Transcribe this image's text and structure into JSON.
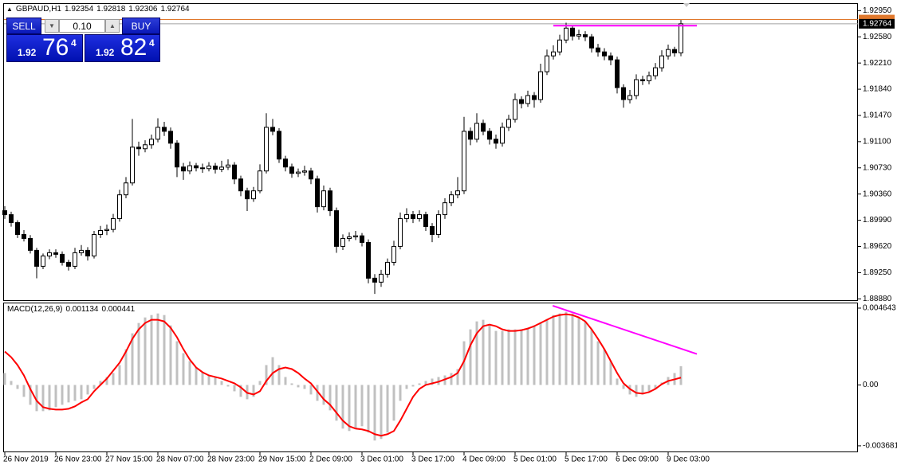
{
  "chart_data": [
    {
      "type": "candlestick",
      "title": "GBPAUD,H1",
      "categories": [
        "26 Nov 2019",
        null,
        null,
        null,
        null,
        null,
        null,
        null,
        "26 Nov 23:00",
        null,
        null,
        null,
        null,
        null,
        null,
        null,
        "27 Nov 15:00",
        null,
        null,
        null,
        null,
        null,
        null,
        null,
        "28 Nov 07:00",
        null,
        null,
        null,
        null,
        null,
        null,
        null,
        "28 Nov 23:00",
        null,
        null,
        null,
        null,
        null,
        null,
        null,
        "29 Nov 15:00",
        null,
        null,
        null,
        null,
        null,
        null,
        null,
        "2 Dec 09:00",
        null,
        null,
        null,
        null,
        null,
        null,
        null,
        "3 Dec 01:00",
        null,
        null,
        null,
        null,
        null,
        null,
        null,
        "3 Dec 17:00",
        null,
        null,
        null,
        null,
        null,
        null,
        null,
        "4 Dec 09:00",
        null,
        null,
        null,
        null,
        null,
        null,
        null,
        "5 Dec 01:00",
        null,
        null,
        null,
        null,
        null,
        null,
        null,
        "5 Dec 17:00",
        null,
        null,
        null,
        null,
        null,
        null,
        null,
        "6 Dec 09:00",
        null,
        null,
        null,
        null,
        null,
        null,
        null,
        "9 Dec 03:00",
        null,
        null
      ],
      "ohlc": [
        [
          1.90125,
          1.9019,
          1.9001,
          1.90069
        ],
        [
          1.90069,
          1.9011,
          1.899,
          1.89957
        ],
        [
          1.89957,
          1.8999,
          1.8974,
          1.89789
        ],
        [
          1.89789,
          1.8985,
          1.8969,
          1.89733
        ],
        [
          1.89733,
          1.8978,
          1.8952,
          1.89565
        ],
        [
          1.89565,
          1.896,
          1.8917,
          1.8934
        ],
        [
          1.8934,
          1.8952,
          1.893,
          1.89486
        ],
        [
          1.89486,
          1.8958,
          1.8944,
          1.89531
        ],
        [
          1.89531,
          1.8958,
          1.8946,
          1.89509
        ],
        [
          1.89509,
          1.8955,
          1.8935,
          1.89396
        ],
        [
          1.89396,
          1.8943,
          1.8928,
          1.8934
        ],
        [
          1.8934,
          1.896,
          1.893,
          1.89531
        ],
        [
          1.89531,
          1.8964,
          1.8949,
          1.89565
        ],
        [
          1.89565,
          1.8961,
          1.8942,
          1.89486
        ],
        [
          1.89486,
          1.8984,
          1.8945,
          1.89789
        ],
        [
          1.89789,
          1.8991,
          1.8974,
          1.89845
        ],
        [
          1.89845,
          1.8993,
          1.8978,
          1.8986
        ],
        [
          1.8986,
          1.9008,
          1.8982,
          1.90013
        ],
        [
          1.90013,
          1.9042,
          1.8997,
          1.90349
        ],
        [
          1.90349,
          1.906,
          1.903,
          1.90517
        ],
        [
          1.90517,
          1.9142,
          1.9048,
          1.91022
        ],
        [
          1.91022,
          1.911,
          1.909,
          1.91
        ],
        [
          1.91,
          1.9112,
          1.9095,
          1.91056
        ],
        [
          1.91056,
          1.912,
          1.91,
          1.91134
        ],
        [
          1.91134,
          1.9143,
          1.9109,
          1.91302
        ],
        [
          1.91302,
          1.9138,
          1.9118,
          1.91246
        ],
        [
          1.91246,
          1.913,
          1.91,
          1.91078
        ],
        [
          1.91078,
          1.9112,
          1.906,
          1.90742
        ],
        [
          1.90742,
          1.908,
          1.9056,
          1.90686
        ],
        [
          1.90686,
          1.9082,
          1.9064,
          1.9076
        ],
        [
          1.9076,
          1.908,
          1.9068,
          1.9073
        ],
        [
          1.9073,
          1.9079,
          1.9066,
          1.90719
        ],
        [
          1.90719,
          1.9081,
          1.9068,
          1.90755
        ],
        [
          1.90755,
          1.908,
          1.9065,
          1.9071
        ],
        [
          1.9071,
          1.9083,
          1.9067,
          1.9074
        ],
        [
          1.9074,
          1.9085,
          1.907,
          1.9077
        ],
        [
          1.9077,
          1.9081,
          1.905,
          1.90573
        ],
        [
          1.90573,
          1.9062,
          1.9033,
          1.90405
        ],
        [
          1.90405,
          1.9045,
          1.9012,
          1.90293
        ],
        [
          1.90293,
          1.9046,
          1.9025,
          1.90405
        ],
        [
          1.90405,
          1.9078,
          1.9037,
          1.90686
        ],
        [
          1.90686,
          1.915,
          1.9065,
          1.91302
        ],
        [
          1.91302,
          1.9142,
          1.9119,
          1.91246
        ],
        [
          1.91246,
          1.9129,
          1.908,
          1.90854
        ],
        [
          1.90854,
          1.909,
          1.9068,
          1.90742
        ],
        [
          1.90742,
          1.9079,
          1.9059,
          1.90652
        ],
        [
          1.90652,
          1.9072,
          1.906,
          1.9067
        ],
        [
          1.9067,
          1.9076,
          1.9062,
          1.90686
        ],
        [
          1.90686,
          1.9073,
          1.905,
          1.90573
        ],
        [
          1.90573,
          1.9062,
          1.901,
          1.90181
        ],
        [
          1.90181,
          1.9048,
          1.9013,
          1.90405
        ],
        [
          1.90405,
          1.9045,
          1.9005,
          1.90125
        ],
        [
          1.90125,
          1.9017,
          1.8953,
          1.89621
        ],
        [
          1.89621,
          1.8979,
          1.8957,
          1.89733
        ],
        [
          1.89733,
          1.8982,
          1.8969,
          1.89755
        ],
        [
          1.89755,
          1.8984,
          1.8971,
          1.8977
        ],
        [
          1.8977,
          1.8981,
          1.8962,
          1.89677
        ],
        [
          1.89677,
          1.8972,
          1.891,
          1.89172
        ],
        [
          1.89172,
          1.8923,
          1.8895,
          1.89116
        ],
        [
          1.89116,
          1.8929,
          1.8905,
          1.89228
        ],
        [
          1.89228,
          1.8945,
          1.8918,
          1.89396
        ],
        [
          1.89396,
          1.897,
          1.8935,
          1.89621
        ],
        [
          1.89621,
          1.901,
          1.8958,
          1.90013
        ],
        [
          1.90013,
          1.9016,
          1.8996,
          1.90069
        ],
        [
          1.90069,
          1.9012,
          1.8995,
          1.90013
        ],
        [
          1.90013,
          1.9013,
          1.8997,
          1.90069
        ],
        [
          1.90069,
          1.9011,
          1.8984,
          1.89901
        ],
        [
          1.89901,
          1.8995,
          1.8968,
          1.89789
        ],
        [
          1.89789,
          1.9013,
          1.8974,
          1.90069
        ],
        [
          1.90069,
          1.903,
          1.9001,
          1.90237
        ],
        [
          1.90237,
          1.904,
          1.9019,
          1.90349
        ],
        [
          1.90349,
          1.906,
          1.903,
          1.90405
        ],
        [
          1.90405,
          1.9145,
          1.9036,
          1.91246
        ],
        [
          1.91246,
          1.913,
          1.9105,
          1.91134
        ],
        [
          1.91134,
          1.915,
          1.9109,
          1.91358
        ],
        [
          1.91358,
          1.9141,
          1.9119,
          1.91246
        ],
        [
          1.91246,
          1.9129,
          1.9106,
          1.91134
        ],
        [
          1.91134,
          1.912,
          1.91,
          1.91078
        ],
        [
          1.91078,
          1.9137,
          1.9103,
          1.91302
        ],
        [
          1.91302,
          1.9148,
          1.9125,
          1.91414
        ],
        [
          1.91414,
          1.9178,
          1.9137,
          1.91694
        ],
        [
          1.91694,
          1.9174,
          1.9157,
          1.91638
        ],
        [
          1.91638,
          1.9182,
          1.9159,
          1.91751
        ],
        [
          1.91751,
          1.918,
          1.9158,
          1.91694
        ],
        [
          1.91694,
          1.922,
          1.9165,
          1.92087
        ],
        [
          1.92087,
          1.924,
          1.9204,
          1.92311
        ],
        [
          1.92311,
          1.9246,
          1.9226,
          1.92367
        ],
        [
          1.92367,
          1.9261,
          1.9232,
          1.92535
        ],
        [
          1.92535,
          1.9278,
          1.9249,
          1.92703
        ],
        [
          1.92703,
          1.9274,
          1.9253,
          1.92591
        ],
        [
          1.92591,
          1.9268,
          1.9254,
          1.9261
        ],
        [
          1.9261,
          1.9266,
          1.9252,
          1.9258
        ],
        [
          1.9258,
          1.9262,
          1.9236,
          1.92423
        ],
        [
          1.92423,
          1.9248,
          1.923,
          1.92367
        ],
        [
          1.92367,
          1.9242,
          1.9225,
          1.92311
        ],
        [
          1.92311,
          1.9236,
          1.9218,
          1.92255
        ],
        [
          1.92255,
          1.923,
          1.9178,
          1.91863
        ],
        [
          1.91863,
          1.9191,
          1.9158,
          1.91694
        ],
        [
          1.91694,
          1.9183,
          1.9164,
          1.91751
        ],
        [
          1.91751,
          1.9205,
          1.917,
          1.91975
        ],
        [
          1.91975,
          1.9203,
          1.919,
          1.9196
        ],
        [
          1.9196,
          1.9209,
          1.9191,
          1.92031
        ],
        [
          1.92031,
          1.9221,
          1.9198,
          1.92143
        ],
        [
          1.92143,
          1.9239,
          1.9209,
          1.92311
        ],
        [
          1.92311,
          1.9247,
          1.9226,
          1.92401
        ],
        [
          1.92401,
          1.9244,
          1.923,
          1.92354
        ],
        [
          1.92354,
          1.92818,
          1.92306,
          1.92764
        ]
      ],
      "ylim": [
        1.8885,
        1.9301
      ],
      "yticks": [
        {
          "value": 1.9295,
          "label": "1.92950"
        },
        {
          "value": 1.9258,
          "label": "1.92580"
        },
        {
          "value": 1.9221,
          "label": "1.92210"
        },
        {
          "value": 1.9184,
          "label": "1.91840"
        },
        {
          "value": 1.9147,
          "label": "1.91470"
        },
        {
          "value": 1.911,
          "label": "1.91100"
        },
        {
          "value": 1.9073,
          "label": "1.90730"
        },
        {
          "value": 1.9036,
          "label": "1.90360"
        },
        {
          "value": 1.8999,
          "label": "1.89990"
        },
        {
          "value": 1.8962,
          "label": "1.89620"
        },
        {
          "value": 1.8925,
          "label": "1.89250"
        },
        {
          "value": 1.8888,
          "label": "1.88880"
        }
      ],
      "ask": 1.92824,
      "ask_color": "#e0782c",
      "bid_color": "#a0a0a0",
      "trendline": {
        "color": "#ff00ff",
        "x": [
          86,
          108.5
        ],
        "values": [
          1.92737,
          1.92737
        ]
      }
    },
    {
      "type": "macd",
      "title": "MACD(12,26,9)",
      "histogram": {
        "color": "#c0c0c0",
        "values": [
          0.00072,
          0.00024,
          -0.00024,
          -0.00072,
          -0.0012,
          -0.001584,
          -0.001584,
          -0.001536,
          -0.001344,
          -0.0012,
          -0.001056,
          -0.00096,
          -0.000864,
          -0.000576,
          -0.00024,
          0.00024,
          0.00048,
          0.00072,
          0.0012,
          0.00216,
          0.00312,
          0.003744,
          0.00408,
          0.004224,
          0.00432,
          0.004224,
          0.0036,
          0.00264,
          0.00192,
          0.00144,
          0.001056,
          0.000768,
          0.000576,
          0.00048,
          0.00024,
          -9.6e-05,
          -0.000384,
          -0.00072,
          -0.000864,
          -0.00072,
          0.00024,
          0.0012,
          0.00168,
          0.0012,
          0.00048,
          9.6e-05,
          -0.000144,
          -0.00024,
          -0.000576,
          -0.00096,
          -0.0012,
          -0.001536,
          -0.00216,
          -0.00264,
          -0.002784,
          -0.00264,
          -0.002496,
          -0.00288,
          -0.00336,
          -0.003264,
          -0.00288,
          -0.00216,
          -0.00096,
          -0.00024,
          -9.6e-05,
          9.6e-05,
          0.00024,
          0.000384,
          0.00048,
          0.000576,
          0.00072,
          0.00096,
          0.00264,
          0.00336,
          0.00384,
          0.003936,
          0.0036,
          0.003264,
          0.003264,
          0.00336,
          0.00336,
          0.00336,
          0.003456,
          0.0036,
          0.003744,
          0.003984,
          0.004224,
          0.00432,
          0.004416,
          0.00432,
          0.00408,
          0.00384,
          0.00336,
          0.00264,
          0.00216,
          0.00144,
          0.000384,
          -0.00024,
          -0.000576,
          -0.00072,
          -0.000576,
          -0.000384,
          -0.00024,
          0.000144,
          0.00048,
          0.00072,
          0.001134
        ]
      },
      "signal": {
        "color": "#ff0000",
        "values": [
          0.002016,
          0.00168,
          0.0012,
          0.000576,
          -0.00024,
          -0.00096,
          -0.001344,
          -0.00144,
          -0.001488,
          -0.001488,
          -0.00144,
          -0.001296,
          -0.001056,
          -0.000864,
          -0.000384,
          0,
          0.000384,
          0.000864,
          0.001344,
          0.002016,
          0.002784,
          0.00336,
          0.003744,
          0.003936,
          0.003936,
          0.00384,
          0.003456,
          0.00288,
          0.00216,
          0.001536,
          0.001056,
          0.000768,
          0.000576,
          0.00048,
          0.000384,
          0.00024,
          9.6e-05,
          -0.000144,
          -0.00048,
          -0.000576,
          -0.000384,
          0.00024,
          0.00072,
          0.00096,
          0.001056,
          0.00096,
          0.00072,
          0.000384,
          9.6e-05,
          -0.000384,
          -0.000864,
          -0.0012,
          -0.00168,
          -0.00216,
          -0.002496,
          -0.00264,
          -0.002688,
          -0.002784,
          -0.002976,
          -0.003072,
          -0.002976,
          -0.002784,
          -0.00216,
          -0.00144,
          -0.00072,
          -0.00024,
          0,
          9.6e-05,
          0.000192,
          0.000336,
          0.00048,
          0.00072,
          0.00144,
          0.0024,
          0.00312,
          0.003552,
          0.003648,
          0.003552,
          0.00336,
          0.003264,
          0.003264,
          0.003312,
          0.003408,
          0.003552,
          0.003744,
          0.003936,
          0.004128,
          0.004224,
          0.004272,
          0.004224,
          0.00408,
          0.00384,
          0.00336,
          0.002784,
          0.00216,
          0.00144,
          0.00072,
          9.6e-05,
          -0.00024,
          -0.00048,
          -0.000528,
          -0.000432,
          -0.00024,
          4.8e-05,
          0.00024,
          0.000336,
          0.000441
        ]
      },
      "ylim": [
        -0.00407,
        0.00493
      ],
      "yticks": [
        0.004643,
        {
          "value": 0,
          "label": "0.00"
        },
        -0.003681
      ],
      "trendline": {
        "color": "#ff00ff",
        "x": [
          85.9,
          108.5
        ],
        "values": [
          0.00479,
          0.00187
        ]
      }
    }
  ],
  "trade_panel": {
    "sell": "SELL",
    "lots": "0.10",
    "buy": "BUY",
    "sell_price": {
      "prefix": "1.92",
      "big": "76",
      "pip": "4"
    },
    "buy_price": {
      "prefix": "1.92",
      "big": "82",
      "pip": "4"
    }
  }
}
